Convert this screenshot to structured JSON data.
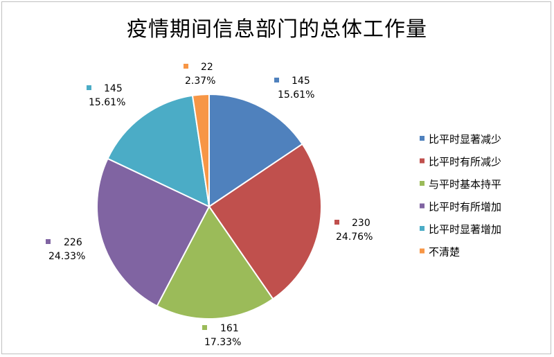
{
  "chart_data": {
    "type": "pie",
    "title": "疫情期间信息部门的总体工作量",
    "legend_position": "right",
    "slices": [
      {
        "name": "比平时显著减少",
        "value": 145,
        "percent": "15.61%",
        "color": "#4F81BD"
      },
      {
        "name": "比平时有所减少",
        "value": 230,
        "percent": "24.76%",
        "color": "#C0504D"
      },
      {
        "name": "与平时基本持平",
        "value": 161,
        "percent": "17.33%",
        "color": "#9BBB59"
      },
      {
        "name": "比平时有所增加",
        "value": 226,
        "percent": "24.33%",
        "color": "#8064A2"
      },
      {
        "name": "比平时显著增加",
        "value": 145,
        "percent": "15.61%",
        "color": "#4BACC6"
      },
      {
        "name": "不清楚",
        "value": 22,
        "percent": "2.37%",
        "color": "#F79646"
      }
    ]
  }
}
